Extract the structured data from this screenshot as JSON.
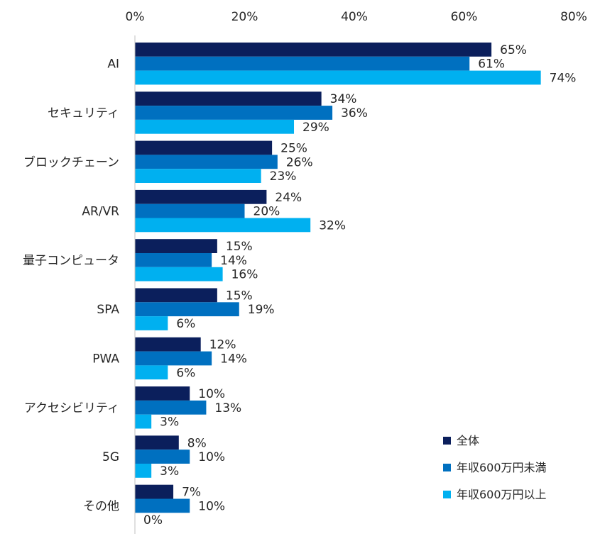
{
  "chart_data": {
    "type": "bar",
    "orientation": "horizontal",
    "xlim": [
      0,
      80
    ],
    "x_ticks": [
      "0%",
      "20%",
      "40%",
      "60%",
      "80%"
    ],
    "x_tick_values": [
      0,
      20,
      40,
      60,
      80
    ],
    "categories": [
      "AI",
      "セキュリティ",
      "ブロックチェーン",
      "AR/VR",
      "量子コンピュータ",
      "SPA",
      "PWA",
      "アクセシビリティ",
      "5G",
      "その他"
    ],
    "series": [
      {
        "name": "全体",
        "color": "#0b1f5c",
        "values": [
          65,
          34,
          25,
          24,
          15,
          15,
          12,
          10,
          8,
          7
        ]
      },
      {
        "name": "年収600万円未満",
        "color": "#0070c0",
        "values": [
          61,
          36,
          26,
          20,
          14,
          19,
          14,
          13,
          10,
          10
        ]
      },
      {
        "name": "年収600万円以上",
        "color": "#00b0f0",
        "values": [
          74,
          29,
          23,
          32,
          16,
          6,
          6,
          3,
          3,
          0
        ]
      }
    ],
    "value_suffix": "%",
    "legend_position": "bottom-right",
    "grid": false
  }
}
